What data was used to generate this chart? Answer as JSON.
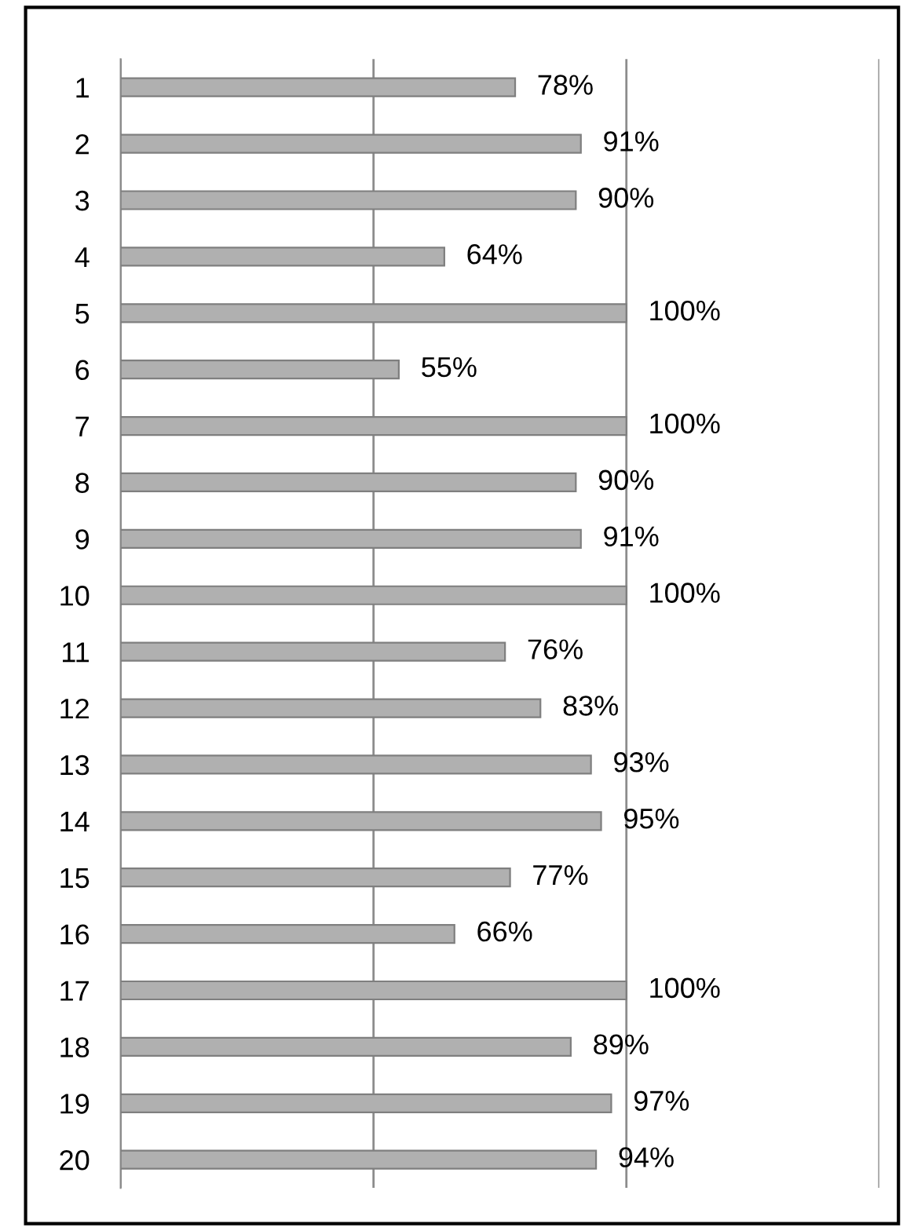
{
  "chart_data": {
    "type": "bar",
    "orientation": "horizontal",
    "categories": [
      "1",
      "2",
      "3",
      "4",
      "5",
      "6",
      "7",
      "8",
      "9",
      "10",
      "11",
      "12",
      "13",
      "14",
      "15",
      "16",
      "17",
      "18",
      "19",
      "20"
    ],
    "values": [
      78,
      91,
      90,
      64,
      100,
      55,
      100,
      90,
      91,
      100,
      76,
      83,
      93,
      95,
      77,
      66,
      100,
      89,
      97,
      94
    ],
    "value_labels": [
      "78%",
      "91%",
      "90%",
      "64%",
      "100%",
      "55%",
      "100%",
      "90%",
      "91%",
      "100%",
      "76%",
      "83%",
      "93%",
      "95%",
      "77%",
      "66%",
      "100%",
      "89%",
      "97%",
      "94%"
    ],
    "color": "#b0b0b0",
    "xlim": [
      0,
      150
    ],
    "xticks": [
      {
        "value": 0,
        "label": null
      },
      {
        "value": 50,
        "label": null
      },
      {
        "value": 100,
        "label": null
      },
      {
        "value": 150,
        "label": null
      }
    ],
    "tick_labels": "y",
    "grid": "x"
  }
}
